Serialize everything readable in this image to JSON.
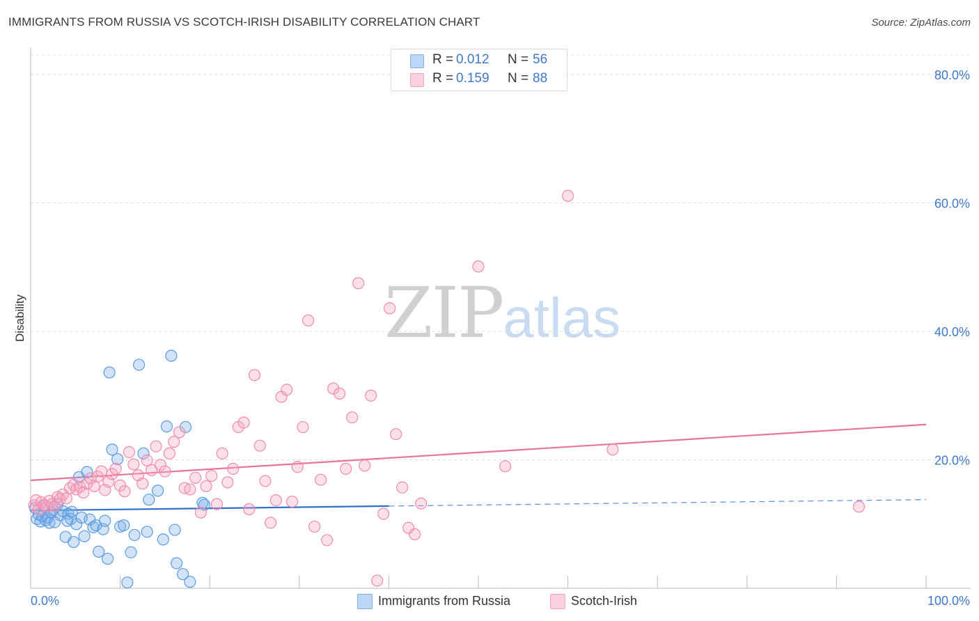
{
  "title": "IMMIGRANTS FROM RUSSIA VS SCOTCH-IRISH DISABILITY CORRELATION CHART",
  "source": "Source: ZipAtlas.com",
  "watermark": {
    "zip": "ZIP",
    "atlas": "atlas"
  },
  "legend": {
    "series": [
      {
        "name": "Immigrants from Russia",
        "r_label": "R =",
        "r_value": "0.012",
        "n_label": "N =",
        "n_value": "56",
        "color": "#7eaee8"
      },
      {
        "name": "Scotch-Irish",
        "r_label": "R =",
        "r_value": "0.159",
        "n_label": "N =",
        "n_value": "88",
        "color": "#f4a6c0"
      }
    ]
  },
  "chart_data": {
    "type": "scatter",
    "title": "IMMIGRANTS FROM RUSSIA VS SCOTCH-IRISH DISABILITY CORRELATION CHART",
    "xlabel": "",
    "ylabel": "Disability",
    "xlim": [
      0,
      100
    ],
    "ylim": [
      0,
      84
    ],
    "x_tick_labels": [
      "0.0%",
      "100.0%"
    ],
    "y_ticks": [
      20,
      40,
      60,
      80
    ],
    "y_tick_labels": [
      "20.0%",
      "40.0%",
      "60.0%",
      "80.0%"
    ],
    "grid": true,
    "series": [
      {
        "name": "Immigrants from Russia",
        "color": "#5b9be0",
        "trend": {
          "x0": 0,
          "y0": 12.1,
          "x1": 40,
          "y1": 12.8,
          "dash_to_x": 100,
          "dash_to_y": 13.8,
          "color": "#2f6fcf"
        },
        "points": [
          [
            0.5,
            12.5
          ],
          [
            0.7,
            10.8
          ],
          [
            0.9,
            11.5
          ],
          [
            1.1,
            10.4
          ],
          [
            1.3,
            11.2
          ],
          [
            1.5,
            12.8
          ],
          [
            1.7,
            10.6
          ],
          [
            1.9,
            11.0
          ],
          [
            2.1,
            10.2
          ],
          [
            2.3,
            11.8
          ],
          [
            2.5,
            12.2
          ],
          [
            2.7,
            10.3
          ],
          [
            3.0,
            13.1
          ],
          [
            3.3,
            11.4
          ],
          [
            3.6,
            12.0
          ],
          [
            3.9,
            8.0
          ],
          [
            4.2,
            11.6
          ],
          [
            4.5,
            10.8
          ],
          [
            4.8,
            7.2
          ],
          [
            4.1,
            10.5
          ],
          [
            5.1,
            10.0
          ],
          [
            5.4,
            17.3
          ],
          [
            5.7,
            11.0
          ],
          [
            4.6,
            11.9
          ],
          [
            6.0,
            8.1
          ],
          [
            6.3,
            18.1
          ],
          [
            6.6,
            10.7
          ],
          [
            7.0,
            9.5
          ],
          [
            7.3,
            9.8
          ],
          [
            7.6,
            5.7
          ],
          [
            8.1,
            9.2
          ],
          [
            8.3,
            10.5
          ],
          [
            8.6,
            4.6
          ],
          [
            8.8,
            33.6
          ],
          [
            9.1,
            21.6
          ],
          [
            9.7,
            20.1
          ],
          [
            10.0,
            9.6
          ],
          [
            10.4,
            9.8
          ],
          [
            10.8,
            0.9
          ],
          [
            11.2,
            5.6
          ],
          [
            11.6,
            8.3
          ],
          [
            12.1,
            34.8
          ],
          [
            12.6,
            21.0
          ],
          [
            13.0,
            8.8
          ],
          [
            13.2,
            13.8
          ],
          [
            14.2,
            15.2
          ],
          [
            14.8,
            7.6
          ],
          [
            15.2,
            25.2
          ],
          [
            15.7,
            36.2
          ],
          [
            16.1,
            9.1
          ],
          [
            16.3,
            3.9
          ],
          [
            17.0,
            2.2
          ],
          [
            17.3,
            25.1
          ],
          [
            17.8,
            1.0
          ],
          [
            19.2,
            13.3
          ],
          [
            19.4,
            13.0
          ]
        ]
      },
      {
        "name": "Scotch-Irish",
        "color": "#f08aac",
        "trend": {
          "x0": 0,
          "y0": 16.8,
          "x1": 100,
          "y1": 25.5,
          "color": "#e8749c"
        },
        "points": [
          [
            0.4,
            12.9
          ],
          [
            0.6,
            13.7
          ],
          [
            0.9,
            12.3
          ],
          [
            1.2,
            13.4
          ],
          [
            1.5,
            13.0
          ],
          [
            1.8,
            12.7
          ],
          [
            2.1,
            13.6
          ],
          [
            2.4,
            13.1
          ],
          [
            2.7,
            12.8
          ],
          [
            3.0,
            14.2
          ],
          [
            3.3,
            13.9
          ],
          [
            3.6,
            14.6
          ],
          [
            4.0,
            14.0
          ],
          [
            4.4,
            15.6
          ],
          [
            4.8,
            16.1
          ],
          [
            5.1,
            15.4
          ],
          [
            5.5,
            15.8
          ],
          [
            5.9,
            14.9
          ],
          [
            6.3,
            16.3
          ],
          [
            6.7,
            17.1
          ],
          [
            7.1,
            15.9
          ],
          [
            7.5,
            17.4
          ],
          [
            7.9,
            18.2
          ],
          [
            8.3,
            15.3
          ],
          [
            8.7,
            16.6
          ],
          [
            9.1,
            17.8
          ],
          [
            9.5,
            18.6
          ],
          [
            10.0,
            16.0
          ],
          [
            10.5,
            15.1
          ],
          [
            11.0,
            21.2
          ],
          [
            11.5,
            19.3
          ],
          [
            12.0,
            17.6
          ],
          [
            12.5,
            16.3
          ],
          [
            13.0,
            19.9
          ],
          [
            13.5,
            18.4
          ],
          [
            14.0,
            22.1
          ],
          [
            14.5,
            19.2
          ],
          [
            15.0,
            18.2
          ],
          [
            15.5,
            21.0
          ],
          [
            16.0,
            22.8
          ],
          [
            16.6,
            24.3
          ],
          [
            17.2,
            15.6
          ],
          [
            17.8,
            15.4
          ],
          [
            18.4,
            17.2
          ],
          [
            19.0,
            11.8
          ],
          [
            19.6,
            15.9
          ],
          [
            20.2,
            17.5
          ],
          [
            20.8,
            13.1
          ],
          [
            21.4,
            21.0
          ],
          [
            22.0,
            16.5
          ],
          [
            22.6,
            18.6
          ],
          [
            23.2,
            25.1
          ],
          [
            23.8,
            25.8
          ],
          [
            24.4,
            12.3
          ],
          [
            25.0,
            33.2
          ],
          [
            25.6,
            22.2
          ],
          [
            26.2,
            16.7
          ],
          [
            26.8,
            10.2
          ],
          [
            27.4,
            13.7
          ],
          [
            28.0,
            29.8
          ],
          [
            28.6,
            30.9
          ],
          [
            29.2,
            13.5
          ],
          [
            29.8,
            18.9
          ],
          [
            30.4,
            25.1
          ],
          [
            31.0,
            41.7
          ],
          [
            31.7,
            9.6
          ],
          [
            32.4,
            16.9
          ],
          [
            33.1,
            7.5
          ],
          [
            33.8,
            31.1
          ],
          [
            34.5,
            30.3
          ],
          [
            35.2,
            18.6
          ],
          [
            35.9,
            26.6
          ],
          [
            36.6,
            47.5
          ],
          [
            37.3,
            19.1
          ],
          [
            38.0,
            30.0
          ],
          [
            38.7,
            1.2
          ],
          [
            39.4,
            11.6
          ],
          [
            40.1,
            43.6
          ],
          [
            40.8,
            24.0
          ],
          [
            41.5,
            15.7
          ],
          [
            42.2,
            9.4
          ],
          [
            42.9,
            8.4
          ],
          [
            43.6,
            13.2
          ],
          [
            50.0,
            50.1
          ],
          [
            53.0,
            19.0
          ],
          [
            60.0,
            61.1
          ],
          [
            65.0,
            21.6
          ],
          [
            92.5,
            12.7
          ]
        ]
      }
    ]
  }
}
